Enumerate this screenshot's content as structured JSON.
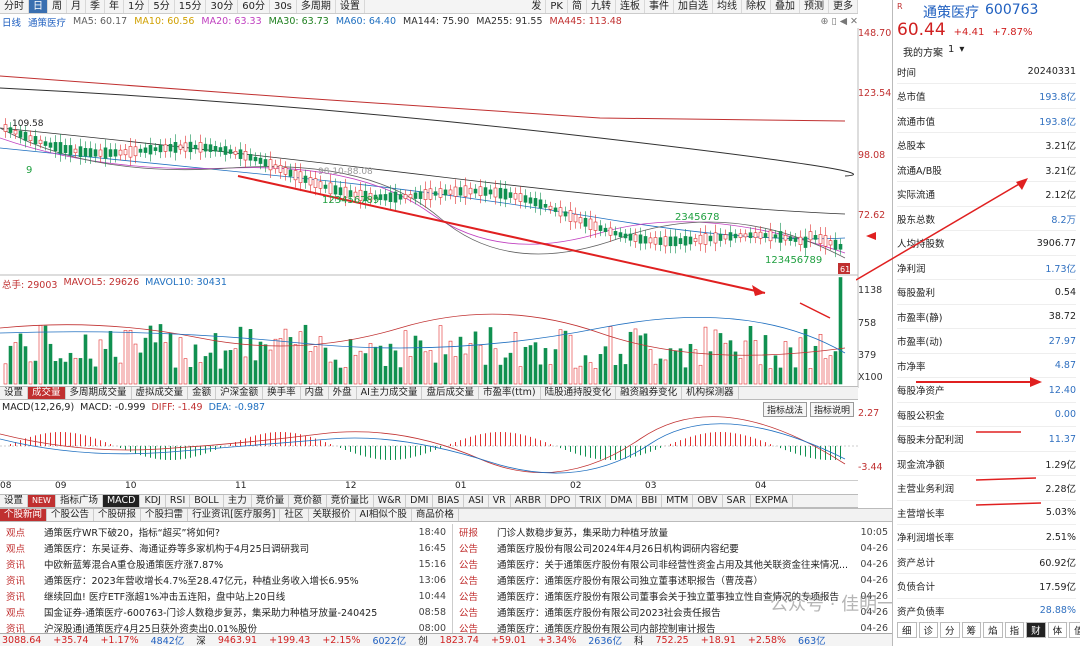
{
  "toolbar": {
    "periods": [
      "分时",
      "日",
      "周",
      "月",
      "季",
      "年",
      "1分",
      "5分",
      "15分",
      "30分",
      "60分",
      "30s",
      "多周期",
      "设置"
    ],
    "selected": "日",
    "right": [
      "发",
      "PK",
      "简",
      "九转",
      "连板",
      "事件",
      "加自选",
      "均线",
      "除权",
      "叠加",
      "预测",
      "更多"
    ]
  },
  "ma_line": {
    "period": "日线",
    "name": "通策医疗",
    "items": [
      {
        "label": "MA5: 60.17",
        "color": "#606060"
      },
      {
        "label": "MA10: 60.56",
        "color": "#d0a000"
      },
      {
        "label": "MA20: 63.33",
        "color": "#c040c0"
      },
      {
        "label": "MA30: 63.73",
        "color": "#208020"
      },
      {
        "label": "MA60: 64.40",
        "color": "#2070c0"
      },
      {
        "label": "MA144: 75.90",
        "color": "#303030"
      },
      {
        "label": "MA255: 91.55",
        "color": "#303030"
      },
      {
        "label": "MA445: 113.48",
        "color": "#c03030"
      }
    ]
  },
  "price_axis": [
    "148.70",
    "123.54",
    "98.08",
    "72.62"
  ],
  "price_labels": {
    "high": "109.58",
    "mid_text": "98.10-88.08",
    "low": "61",
    "seq_top": "2345678",
    "seq_mid": "123456789",
    "seq_bot": "123456789",
    "nine": "9"
  },
  "vol_line": {
    "total": "总手: 29003",
    "mavol5": "MAVOL5: 29626",
    "mavol10": "MAVOL10: 30431"
  },
  "vol_axis": [
    "1138",
    "758",
    "379",
    "X100"
  ],
  "indicator_tabs": [
    "设置",
    "成交量",
    "多周期成交量",
    "虚拟成交量",
    "金额",
    "沪深金额",
    "换手率",
    "内盘",
    "外盘",
    "AI主力成交量",
    "盘后成交量",
    "市盈率(ttm)",
    "陆股通持股变化",
    "融资融券变化",
    "机构探测器"
  ],
  "indicator_selected": "成交量",
  "macd_btns": [
    "指标战法",
    "指标说明"
  ],
  "macd_line": {
    "name": "MACD(12,26,9)",
    "macd": "MACD: -0.999",
    "diff": "DIFF: -1.49",
    "dea": "DEA: -0.987"
  },
  "macd_axis": [
    "2.27",
    "-3.44"
  ],
  "dates": [
    "08",
    "09",
    "10",
    "11",
    "12",
    "01",
    "02",
    "03",
    "04"
  ],
  "bottom_tabs": [
    "设置",
    "NEW",
    "指标广场",
    "MACD",
    "KDJ",
    "RSI",
    "BOLL",
    "主力",
    "竞价量",
    "竞价额",
    "竞价量比",
    "W&R",
    "DMI",
    "BIAS",
    "ASI",
    "VR",
    "ARBR",
    "DPO",
    "TRIX",
    "DMA",
    "BBI",
    "MTM",
    "OBV",
    "SAR",
    "EXPMA"
  ],
  "bottom_selected": "MACD",
  "news_tabs": [
    "个股新闻",
    "个股公告",
    "个股研报",
    "个股扫雷",
    "行业资讯[医疗服务]",
    "社区",
    "关联报价",
    "AI相似个股",
    "商品价格"
  ],
  "news_left": [
    {
      "tag": "观点",
      "title": "通策医疗WR下破20，指标“超买”将如何?",
      "time": "18:40"
    },
    {
      "tag": "观点",
      "title": "通策医疗：东吴证券、海通证券等多家机构于4月25日调研我司",
      "time": "16:45"
    },
    {
      "tag": "资讯",
      "title": "中欧新蓝筹混合A重仓股通策医疗涨7.87%",
      "time": "15:16"
    },
    {
      "tag": "资讯",
      "title": "通策医疗：2023年营收增长4.7%至28.47亿元，种植业务收入增长6.95%",
      "time": "13:06"
    },
    {
      "tag": "资讯",
      "title": "继续回血! 医疗ETF涨超1%冲击五连阳，盘中站上20日线",
      "time": "10:44"
    },
    {
      "tag": "观点",
      "title": "国金证券-通策医疗-600763-门诊人数稳步复苏，集采助力种植牙放量-240425",
      "time": "08:58"
    },
    {
      "tag": "资讯",
      "title": "沪深股通|通策医疗4月25日获外资卖出0.01%股份",
      "time": "08:00"
    }
  ],
  "news_right": [
    {
      "tag": "研报",
      "title": "门诊人数稳步复苏，集采助力种植牙放量",
      "time": "10:05"
    },
    {
      "tag": "公告",
      "title": "通策医疗股份有限公司2024年4月26日机构调研内容纪要",
      "time": "04-26"
    },
    {
      "tag": "公告",
      "title": "通策医疗：关于通策医疗股份有限公司非经营性资金占用及其他关联资金往来情况...",
      "time": "04-26"
    },
    {
      "tag": "公告",
      "title": "通策医疗：通策医疗股份有限公司独立董事述职报告（曹茂喜）",
      "time": "04-26"
    },
    {
      "tag": "公告",
      "title": "通策医疗：通策医疗股份有限公司董事会关于独立董事独立性自查情况的专项报告",
      "time": "04-26"
    },
    {
      "tag": "公告",
      "title": "通策医疗：通策医疗股份有限公司2023社会责任报告",
      "time": "04-26"
    },
    {
      "tag": "公告",
      "title": "通策医疗：通策医疗股份有限公司内部控制审计报告",
      "time": "04-26"
    }
  ],
  "status": [
    {
      "t": "3088.64",
      "c": "red"
    },
    {
      "t": "+35.74",
      "c": "red"
    },
    {
      "t": "+1.17%",
      "c": "red"
    },
    {
      "t": "4842亿",
      "c": "blu"
    },
    {
      "t": "深",
      "c": ""
    },
    {
      "t": "9463.91",
      "c": "red"
    },
    {
      "t": "+199.43",
      "c": "red"
    },
    {
      "t": "+2.15%",
      "c": "red"
    },
    {
      "t": "6022亿",
      "c": "blu"
    },
    {
      "t": "创",
      "c": ""
    },
    {
      "t": "1823.74",
      "c": "red"
    },
    {
      "t": "+59.01",
      "c": "red"
    },
    {
      "t": "+3.34%",
      "c": "red"
    },
    {
      "t": "2636亿",
      "c": "blu"
    },
    {
      "t": "科",
      "c": ""
    },
    {
      "t": "752.25",
      "c": "red"
    },
    {
      "t": "+18.91",
      "c": "red"
    },
    {
      "t": "+2.58%",
      "c": "red"
    },
    {
      "t": "663亿",
      "c": "blu"
    }
  ],
  "stock": {
    "name": "通策医疗",
    "code": "600763",
    "price": "60.44",
    "change": "+4.41",
    "pct": "+7.87%",
    "plan": "我的方案",
    "plan_num": "1"
  },
  "fundamentals": [
    {
      "k": "时间",
      "v": "20240331",
      "blue": false
    },
    {
      "k": "总市值",
      "v": "193.8亿",
      "blue": true
    },
    {
      "k": "流通市值",
      "v": "193.8亿",
      "blue": true
    },
    {
      "k": "总股本",
      "v": "3.21亿",
      "blue": false
    },
    {
      "k": "流通A/B股",
      "v": "3.21亿",
      "blue": false
    },
    {
      "k": "实际流通",
      "v": "2.12亿",
      "blue": false
    },
    {
      "k": "股东总数",
      "v": "8.2万",
      "blue": true
    },
    {
      "k": "人均持股数",
      "v": "3906.77",
      "blue": false
    },
    {
      "k": "净利润",
      "v": "1.73亿",
      "blue": true
    },
    {
      "k": "每股盈利",
      "v": "0.54",
      "blue": false
    },
    {
      "k": "市盈率(静)",
      "v": "38.72",
      "blue": false
    },
    {
      "k": "市盈率(动)",
      "v": "27.97",
      "blue": true
    },
    {
      "k": "市净率",
      "v": "4.87",
      "blue": true
    },
    {
      "k": "每股净资产",
      "v": "12.40",
      "blue": true
    },
    {
      "k": "每股公积金",
      "v": "0.00",
      "blue": true
    },
    {
      "k": "每股未分配利润",
      "v": "11.37",
      "blue": true
    },
    {
      "k": "现金流净额",
      "v": "1.29亿",
      "blue": false
    },
    {
      "k": "主营业务利润",
      "v": "2.28亿",
      "blue": false
    },
    {
      "k": "主营增长率",
      "v": "5.03%",
      "blue": false
    },
    {
      "k": "净利润增长率",
      "v": "2.51%",
      "blue": false
    },
    {
      "k": "资产总计",
      "v": "60.92亿",
      "blue": false
    },
    {
      "k": "负债合计",
      "v": "17.59亿",
      "blue": false
    },
    {
      "k": "资产负债率",
      "v": "28.88%",
      "blue": true
    }
  ],
  "right_tabs": [
    "细",
    "诊",
    "分",
    "筹",
    "焰",
    "指",
    "财",
    "体",
    "值"
  ],
  "right_selected": "财",
  "watermark": "公众号 · 佳明一分钟",
  "colors": {
    "up": "#e03030",
    "down": "#109050",
    "accent": "#c03030"
  }
}
